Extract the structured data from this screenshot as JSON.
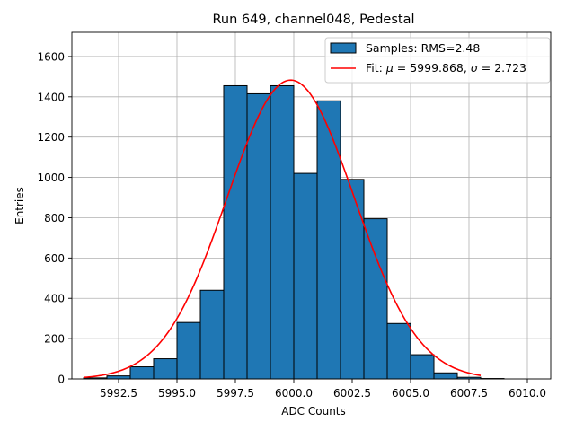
{
  "chart_data": {
    "type": "bar",
    "title": "Run 649, channel048, Pedestal",
    "xlabel": "ADC Counts",
    "ylabel": "Entries",
    "xlim": [
      5990.5,
      6011.0
    ],
    "ylim": [
      0,
      1720
    ],
    "grid": true,
    "xticks": [
      5992.5,
      5995.0,
      5997.5,
      6000.0,
      6002.5,
      6005.0,
      6007.5,
      6010.0
    ],
    "xtick_labels": [
      "5992.5",
      "5995.0",
      "5997.5",
      "6000.0",
      "6002.5",
      "6005.0",
      "6007.5",
      "6010.0"
    ],
    "yticks": [
      0,
      200,
      400,
      600,
      800,
      1000,
      1200,
      1400,
      1600
    ],
    "ytick_labels": [
      "0",
      "200",
      "400",
      "600",
      "800",
      "1000",
      "1200",
      "1400",
      "1600"
    ],
    "histogram": {
      "name": "Samples: RMS=2.48",
      "color": "#1f77b4",
      "edge_color": "#000000",
      "bins": [
        {
          "left": 5991,
          "right": 5992,
          "count": 5
        },
        {
          "left": 5992,
          "right": 5993,
          "count": 15
        },
        {
          "left": 5993,
          "right": 5994,
          "count": 60
        },
        {
          "left": 5994,
          "right": 5995,
          "count": 100
        },
        {
          "left": 5995,
          "right": 5996,
          "count": 280
        },
        {
          "left": 5996,
          "right": 5997,
          "count": 440
        },
        {
          "left": 5997,
          "right": 5998,
          "count": 1455
        },
        {
          "left": 5998,
          "right": 5999,
          "count": 1415
        },
        {
          "left": 5999,
          "right": 6000,
          "count": 1455
        },
        {
          "left": 6000,
          "right": 6001,
          "count": 1020
        },
        {
          "left": 6001,
          "right": 6002,
          "count": 1380
        },
        {
          "left": 6002,
          "right": 6003,
          "count": 990
        },
        {
          "left": 6003,
          "right": 6004,
          "count": 795
        },
        {
          "left": 6004,
          "right": 6005,
          "count": 275
        },
        {
          "left": 6005,
          "right": 6006,
          "count": 120
        },
        {
          "left": 6006,
          "right": 6007,
          "count": 30
        },
        {
          "left": 6007,
          "right": 6008,
          "count": 8
        },
        {
          "left": 6008,
          "right": 6009,
          "count": 2
        }
      ]
    },
    "fit": {
      "name_prefix": "Fit: ",
      "mu_symbol": "μ",
      "sigma_symbol": "σ",
      "mu": 5999.868,
      "mu_text": "5999.868",
      "sigma": 2.723,
      "sigma_text": "2.723",
      "amplitude": 1483,
      "x_range": [
        5991,
        6008
      ],
      "color": "#ff0000"
    },
    "legend_position": "upper right"
  }
}
